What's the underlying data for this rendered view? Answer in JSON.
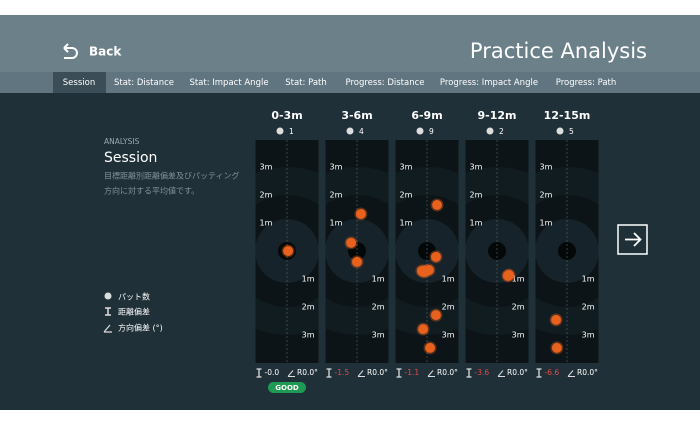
{
  "header": {
    "back": "Back",
    "title": "Practice Analysis"
  },
  "tabs": [
    "Session",
    "Stat: Distance",
    "Stat: Impact Angle",
    "Stat: Path",
    "Progress: Distance",
    "Progress: Impact Angle",
    "Progress: Path"
  ],
  "active_tab": 0,
  "info": {
    "kicker": "ANALYSIS",
    "title": "Session",
    "description": [
      "目標距離別距離偏差及びパッティング",
      "方向に対する平均値です。"
    ]
  },
  "legend": [
    "パット数",
    "距離偏差",
    "方向偏差 (°)"
  ],
  "scale": {
    "xlim": [
      -1.125,
      1.125
    ],
    "ylim": [
      -4,
      3.96
    ],
    "ticks": [
      {
        "value": 3,
        "label": "3m"
      },
      {
        "value": 2,
        "label": "2m"
      },
      {
        "value": 1,
        "label": "1m"
      },
      {
        "value": -1,
        "label": "1m"
      },
      {
        "value": -2,
        "label": "2m"
      },
      {
        "value": -3,
        "label": "3m"
      }
    ]
  },
  "shot_color": "#e8621e",
  "panels": [
    {
      "range": "0-3m",
      "count": "1",
      "distance_bias": "-0.0",
      "bias_color": "#ffffff",
      "angle_bias": "R0.0°",
      "status": "GOOD",
      "shots": [
        {
          "x": 0.04,
          "y": 0.0
        }
      ]
    },
    {
      "range": "3-6m",
      "count": "4",
      "distance_bias": "-1.5",
      "bias_color": "#e04a4a",
      "angle_bias": "R0.0°",
      "shots": [
        {
          "x": 0.14,
          "y": 1.32
        },
        {
          "x": -0.21,
          "y": 0.29
        },
        {
          "x": 0.0,
          "y": -0.39
        }
      ]
    },
    {
      "range": "6-9m",
      "count": "9",
      "distance_bias": "-1.1",
      "bias_color": "#e04a4a",
      "angle_bias": "R0.0°",
      "shots": [
        {
          "x": 0.36,
          "y": 1.64
        },
        {
          "x": 0.32,
          "y": -0.21
        },
        {
          "x": -0.18,
          "y": -0.71
        },
        {
          "x": -0.04,
          "y": -0.71
        },
        {
          "x": 0.07,
          "y": -0.68
        },
        {
          "x": -0.11,
          "y": -0.75
        },
        {
          "x": 0.32,
          "y": -2.29
        },
        {
          "x": -0.14,
          "y": -2.79
        },
        {
          "x": 0.11,
          "y": -3.46
        }
      ]
    },
    {
      "range": "9-12m",
      "count": "2",
      "distance_bias": "-3.6",
      "bias_color": "#e04a4a",
      "angle_bias": "R0.0°",
      "shots": [
        {
          "x": 0.39,
          "y": -0.89
        },
        {
          "x": 0.43,
          "y": -0.86
        }
      ]
    },
    {
      "range": "12-15m",
      "count": "5",
      "distance_bias": "-6.6",
      "bias_color": "#e04a4a",
      "angle_bias": "R0.0°",
      "shots": [
        {
          "x": -0.39,
          "y": -2.46
        },
        {
          "x": -0.36,
          "y": -3.46
        }
      ]
    }
  ]
}
